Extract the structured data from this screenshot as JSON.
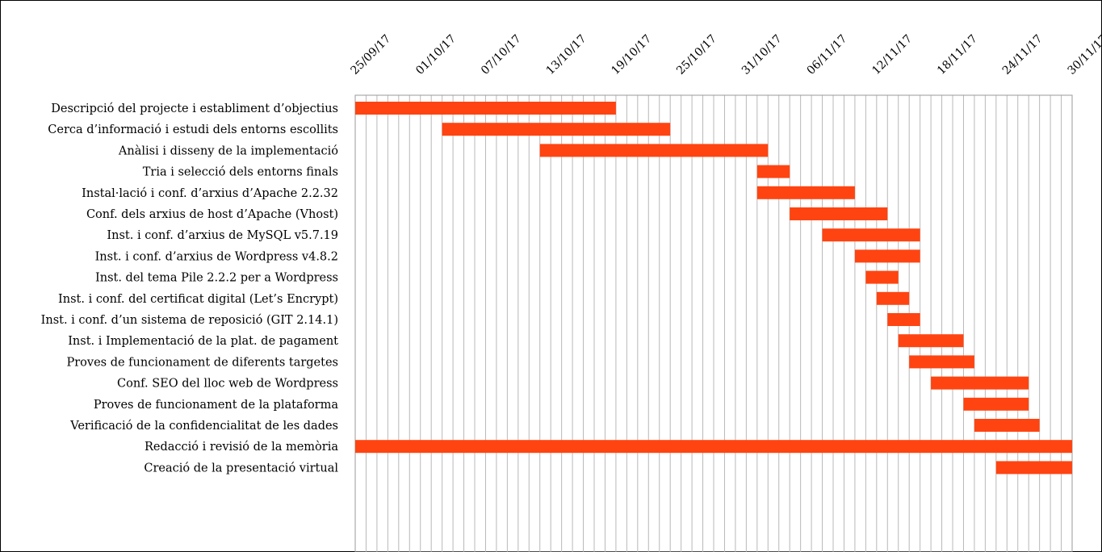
{
  "chart_data": {
    "type": "gantt",
    "title": "",
    "xlabel": "",
    "ylabel": "",
    "x_axis": {
      "type": "date",
      "range": [
        "2017-09-25",
        "2017-11-30"
      ],
      "tick_labels": [
        "25/09/17",
        "01/10/17",
        "07/10/17",
        "13/10/17",
        "19/10/17",
        "25/10/17",
        "31/10/17",
        "06/11/17",
        "12/11/17",
        "18/11/17",
        "24/11/17",
        "30/11/17"
      ],
      "tick_dates": [
        "2017-09-25",
        "2017-10-01",
        "2017-10-07",
        "2017-10-13",
        "2017-10-19",
        "2017-10-25",
        "2017-10-31",
        "2017-11-06",
        "2017-11-12",
        "2017-11-18",
        "2017-11-24",
        "2017-11-30"
      ],
      "tick_label_position": "top",
      "gridlines": "vertical, daily"
    },
    "bar_color": "#FF4411",
    "legend": "none",
    "tasks": [
      {
        "name": "Descripció del projecte i establiment d’objectius",
        "start": "2017-09-25",
        "end": "2017-10-19"
      },
      {
        "name": "Cerca d’informació i estudi dels entorns escollits",
        "start": "2017-10-03",
        "end": "2017-10-24"
      },
      {
        "name": "Anàlisi i disseny de la implementació",
        "start": "2017-10-12",
        "end": "2017-11-02"
      },
      {
        "name": "Tria i selecció dels entorns finals",
        "start": "2017-11-01",
        "end": "2017-11-04"
      },
      {
        "name": "Instal·lació i conf. d’arxius d’Apache 2.2.32",
        "start": "2017-11-01",
        "end": "2017-11-10"
      },
      {
        "name": "Conf. dels arxius de host d’Apache (Vhost)",
        "start": "2017-11-04",
        "end": "2017-11-13"
      },
      {
        "name": "Inst. i conf. d’arxius de MySQL v5.7.19",
        "start": "2017-11-07",
        "end": "2017-11-16"
      },
      {
        "name": "Inst. i conf. d’arxius de Wordpress v4.8.2",
        "start": "2017-11-10",
        "end": "2017-11-16"
      },
      {
        "name": "Inst. del tema Pile 2.2.2 per a Wordpress",
        "start": "2017-11-11",
        "end": "2017-11-14"
      },
      {
        "name": "Inst. i conf. del certificat digital (Let’s Encrypt)",
        "start": "2017-11-12",
        "end": "2017-11-15"
      },
      {
        "name": "Inst. i conf. d’un sistema de reposició (GIT 2.14.1)",
        "start": "2017-11-13",
        "end": "2017-11-16"
      },
      {
        "name": "Inst. i Implementació de la plat. de pagament",
        "start": "2017-11-14",
        "end": "2017-11-20"
      },
      {
        "name": "Proves de funcionament de diferents targetes",
        "start": "2017-11-15",
        "end": "2017-11-21"
      },
      {
        "name": "Conf. SEO del lloc web de Wordpress",
        "start": "2017-11-17",
        "end": "2017-11-26"
      },
      {
        "name": "Proves de funcionament de la plataforma",
        "start": "2017-11-20",
        "end": "2017-11-26"
      },
      {
        "name": "Verificació de la confidencialitat de les dades",
        "start": "2017-11-21",
        "end": "2017-11-27"
      },
      {
        "name": "Redacció i revisió de la memòria",
        "start": "2017-09-25",
        "end": "2017-11-30"
      },
      {
        "name": "Creació de la presentació virtual",
        "start": "2017-11-23",
        "end": "2017-11-30"
      }
    ]
  }
}
